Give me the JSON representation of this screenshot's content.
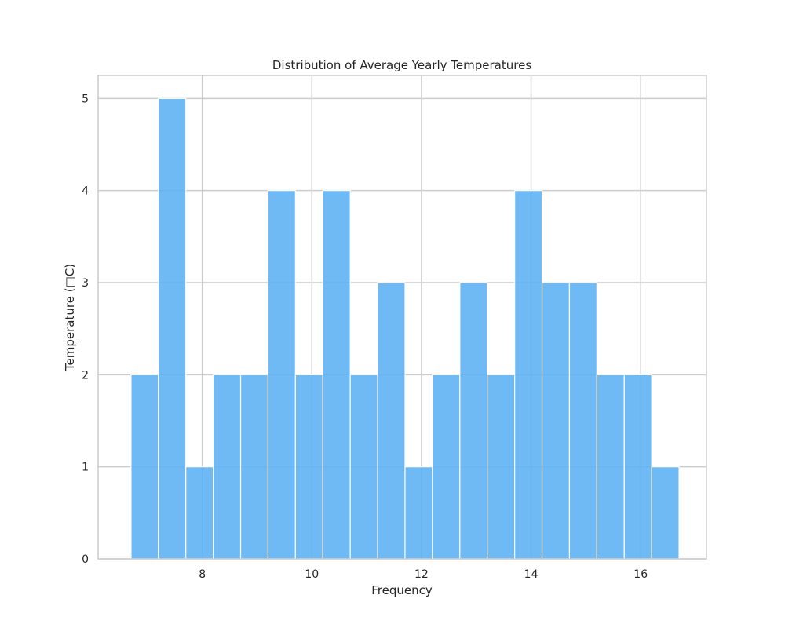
{
  "chart_data": {
    "type": "bar",
    "title": "Distribution of Average Yearly Temperatures",
    "xlabel": "Frequency",
    "ylabel": "Temperature (□C)",
    "xlim": [
      6.1,
      17.2
    ],
    "ylim": [
      0,
      5.25
    ],
    "xticks": [
      8,
      10,
      12,
      14,
      16
    ],
    "yticks": [
      0,
      1,
      2,
      3,
      4,
      5
    ],
    "grid": true,
    "bin_edges": [
      6.7,
      7.2,
      7.7,
      8.2,
      8.7,
      9.2,
      9.7,
      10.2,
      10.7,
      11.2,
      11.7,
      12.2,
      12.7,
      13.2,
      13.7,
      14.2,
      14.7,
      15.2,
      15.7,
      16.2,
      16.7
    ],
    "values": [
      2,
      5,
      1,
      2,
      2,
      4,
      2,
      4,
      2,
      3,
      1,
      2,
      3,
      2,
      4,
      3,
      3,
      2,
      2,
      1
    ],
    "colors": {
      "bar": "#5bb0f3",
      "bar_edge": "#ffffff",
      "grid": "#cccccc",
      "frame": "#cccccc",
      "text": "#262626"
    }
  }
}
